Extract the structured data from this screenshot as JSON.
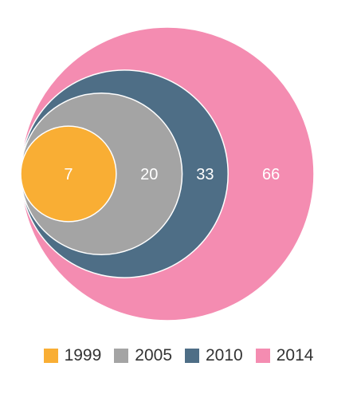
{
  "chart_data": {
    "type": "nested-bubble",
    "legend_placement": "bottom",
    "series": [
      {
        "name": "2014",
        "value": 66,
        "color": "#f48cb1"
      },
      {
        "name": "2010",
        "value": 33,
        "color": "#4e6e86"
      },
      {
        "name": "2005",
        "value": 20,
        "color": "#a4a4a4"
      },
      {
        "name": "1999",
        "value": 7,
        "color": "#f9ae34"
      }
    ],
    "legend": [
      {
        "name": "1999",
        "color": "#f9ae34"
      },
      {
        "name": "2005",
        "color": "#a4a4a4"
      },
      {
        "name": "2010",
        "color": "#4e6e86"
      },
      {
        "name": "2014",
        "color": "#f48cb1"
      }
    ]
  }
}
